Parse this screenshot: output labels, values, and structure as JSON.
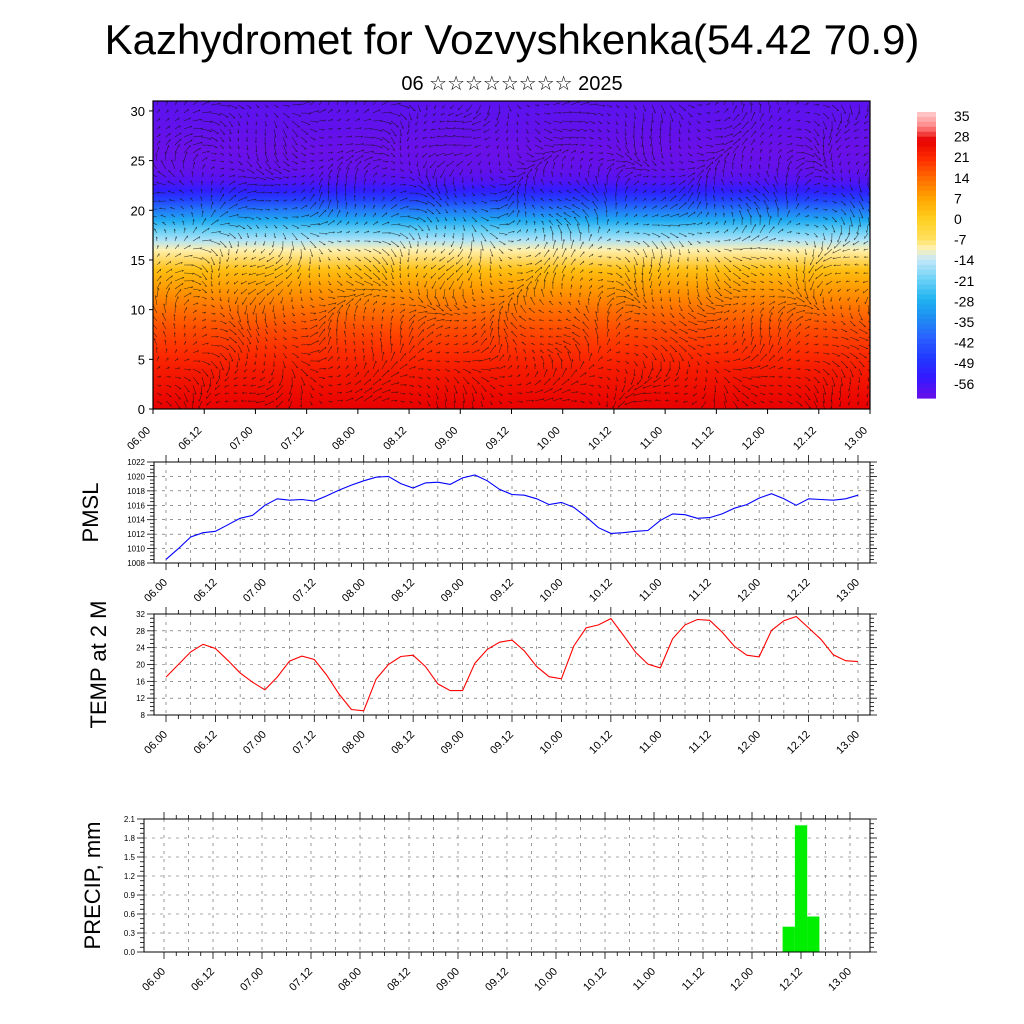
{
  "title": "Kazhydromet for Vozvyshkenka(54.42 70.9)",
  "subtitle": "06 ☆☆☆☆☆☆☆☆ 2025",
  "chart_data": [
    {
      "type": "heatmap",
      "panel": "cross-section",
      "x_tick_labels": [
        "06.00",
        "06.12",
        "07.00",
        "07.12",
        "08.00",
        "08.12",
        "09.00",
        "09.12",
        "10.00",
        "10.12",
        "11.00",
        "11.12",
        "12.00",
        "12.12",
        "13.00"
      ],
      "y_ticks": [
        0,
        5,
        10,
        15,
        20,
        25,
        30
      ],
      "ylim": [
        0,
        31
      ],
      "colorbar_labels": [
        "35",
        "28",
        "21",
        "14",
        "7",
        "0",
        "-7",
        "-14",
        "-21",
        "-28",
        "-35",
        "-42",
        "-49",
        "-56"
      ],
      "colorbar_range": [
        -63,
        38
      ],
      "temperature_by_level": {
        "levels": [
          0,
          2,
          4,
          6,
          8,
          10,
          12,
          14,
          16,
          17,
          18,
          19,
          20,
          21,
          22,
          23,
          24,
          26,
          28,
          31
        ],
        "values": [
          28,
          26,
          24,
          21,
          18,
          14,
          9,
          3,
          -10,
          -16,
          -22,
          -30,
          -38,
          -47,
          -55,
          -60,
          -62,
          -63,
          -62,
          -61
        ]
      },
      "overlay": "wind-vectors"
    },
    {
      "type": "line",
      "ylabel": "PMSL",
      "ylim": [
        1008,
        1022
      ],
      "y_ticks": [
        1008,
        1010,
        1012,
        1014,
        1016,
        1018,
        1020,
        1022
      ],
      "x_tick_labels": [
        "06.00",
        "06.12",
        "07.00",
        "07.12",
        "08.00",
        "08.12",
        "09.00",
        "09.12",
        "10.00",
        "10.12",
        "11.00",
        "11.12",
        "12.00",
        "12.12",
        "13.00"
      ],
      "series": [
        {
          "color": "#0000ff",
          "values": [
            1008.5,
            1010,
            1011.6,
            1012.2,
            1012.4,
            1013.3,
            1014.2,
            1014.6,
            1016,
            1016.9,
            1016.7,
            1016.8,
            1016.6,
            1017.3,
            1018.1,
            1018.8,
            1019.4,
            1019.9,
            1020,
            1019,
            1018.4,
            1019.1,
            1019.2,
            1018.9,
            1019.8,
            1020.2,
            1019.4,
            1018.2,
            1017.5,
            1017.4,
            1016.9,
            1016.1,
            1016.4,
            1015.7,
            1014.4,
            1012.9,
            1012.1,
            1012.2,
            1012.4,
            1012.5,
            1013.9,
            1014.8,
            1014.7,
            1014.2,
            1014.3,
            1014.8,
            1015.6,
            1016.1,
            1017,
            1017.6,
            1016.9,
            1016,
            1016.9,
            1016.8,
            1016.7,
            1016.9,
            1017.4
          ]
        }
      ]
    },
    {
      "type": "line",
      "ylabel": "TEMP at 2 M",
      "ylim": [
        8,
        32
      ],
      "y_ticks": [
        8,
        12,
        16,
        20,
        24,
        28,
        32
      ],
      "x_tick_labels": [
        "06.00",
        "06.12",
        "07.00",
        "07.12",
        "08.00",
        "08.12",
        "09.00",
        "09.12",
        "10.00",
        "10.12",
        "11.00",
        "11.12",
        "12.00",
        "12.12",
        "13.00"
      ],
      "series": [
        {
          "color": "#ff0000",
          "values": [
            17,
            20,
            23,
            24.8,
            23.8,
            21,
            18,
            15.8,
            14,
            17,
            20.8,
            22,
            21.2,
            17.5,
            13,
            9.3,
            9,
            16.5,
            20,
            21.9,
            22.2,
            19.5,
            15.4,
            13.8,
            13.8,
            20.3,
            23.6,
            25.3,
            25.8,
            23.2,
            19.5,
            17.1,
            16.6,
            24.4,
            28.7,
            29.4,
            30.9,
            27,
            22.9,
            20.1,
            19.2,
            26.1,
            29.4,
            30.7,
            30.5,
            27.7,
            24.3,
            22.2,
            21.8,
            28.1,
            30.4,
            31.4,
            28.7,
            26,
            22.3,
            20.9,
            20.7
          ]
        }
      ]
    },
    {
      "type": "bar",
      "ylabel": "PRECIP, mm",
      "ylim": [
        0,
        2.1
      ],
      "y_ticks": [
        "0.0",
        "0.3",
        "0.6",
        "0.9",
        "1.2",
        "1.5",
        "1.8",
        "2.1"
      ],
      "x_tick_labels": [
        "06.00",
        "06.12",
        "07.00",
        "07.12",
        "08.00",
        "08.12",
        "09.00",
        "09.12",
        "10.00",
        "10.12",
        "11.00",
        "11.12",
        "12.00",
        "12.12",
        "13.00"
      ],
      "series": [
        {
          "color": "#00ee00",
          "values": [
            0,
            0,
            0,
            0,
            0,
            0,
            0,
            0,
            0,
            0,
            0,
            0,
            0,
            0,
            0,
            0,
            0,
            0,
            0,
            0,
            0,
            0,
            0,
            0,
            0,
            0,
            0,
            0,
            0,
            0,
            0,
            0,
            0,
            0,
            0,
            0,
            0,
            0,
            0,
            0,
            0,
            0,
            0,
            0,
            0,
            0,
            0,
            0,
            0,
            0,
            0,
            0.4,
            2.0,
            0.56,
            0,
            0,
            0
          ]
        }
      ]
    }
  ]
}
